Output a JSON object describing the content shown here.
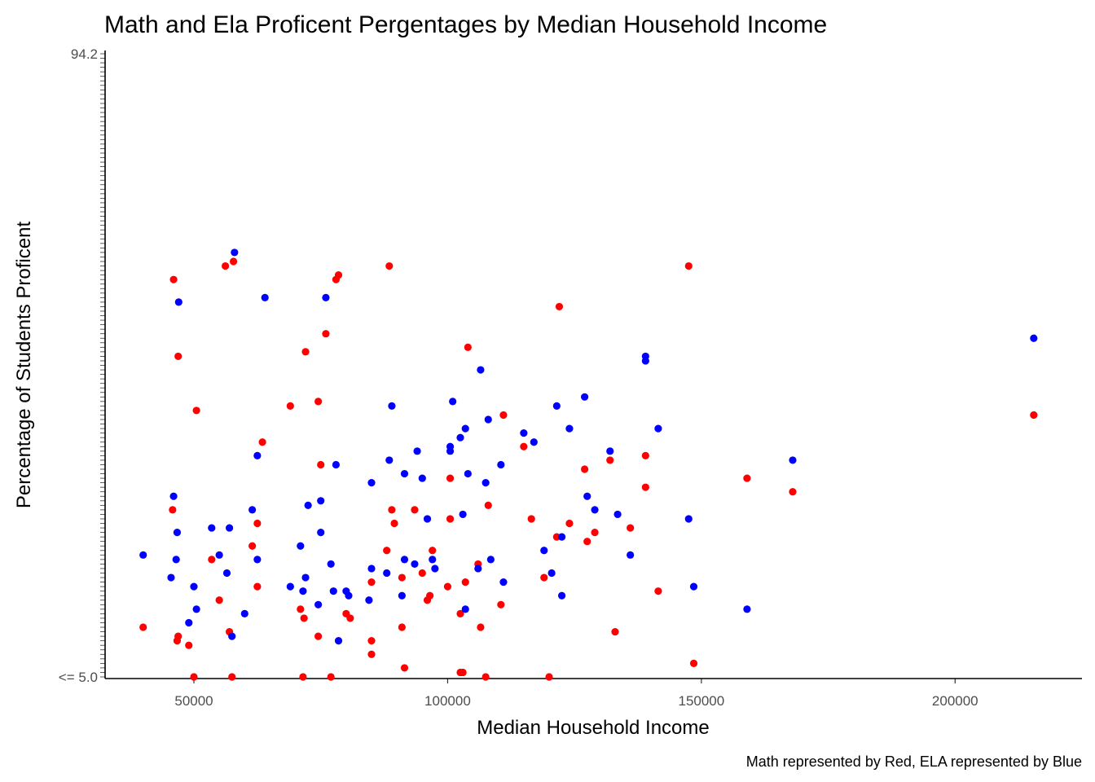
{
  "chart_data": {
    "type": "scatter",
    "title": "Math and Ela Proficent Pergentages by Median Household Income",
    "xlabel": "Median Household Income",
    "ylabel": "Percentage of Students Proficent",
    "caption": "Math represented by Red, ELA represented by Blue",
    "xlim": [
      32500,
      225000
    ],
    "x_ticks": [
      50000,
      100000,
      150000,
      200000
    ],
    "y_axis": {
      "scale": "categorical",
      "first_label": "<= 5.0",
      "last_label": "94.2",
      "levels": 139
    },
    "grid": false,
    "legend": "none",
    "series": [
      {
        "color": "#ff0000",
        "points": [
          {
            "x": 40000,
            "y": 11
          },
          {
            "x": 45800,
            "y": 37
          },
          {
            "x": 46000,
            "y": 88
          },
          {
            "x": 46700,
            "y": 8
          },
          {
            "x": 46900,
            "y": 9
          },
          {
            "x": 46900,
            "y": 71
          },
          {
            "x": 49000,
            "y": 7
          },
          {
            "x": 50000,
            "y": 0
          },
          {
            "x": 50500,
            "y": 59
          },
          {
            "x": 53500,
            "y": 26
          },
          {
            "x": 55000,
            "y": 17
          },
          {
            "x": 56200,
            "y": 91
          },
          {
            "x": 57000,
            "y": 10
          },
          {
            "x": 57500,
            "y": 0
          },
          {
            "x": 57800,
            "y": 92
          },
          {
            "x": 61500,
            "y": 29
          },
          {
            "x": 62500,
            "y": 34
          },
          {
            "x": 62500,
            "y": 20
          },
          {
            "x": 63500,
            "y": 52
          },
          {
            "x": 69000,
            "y": 60
          },
          {
            "x": 71000,
            "y": 15
          },
          {
            "x": 71500,
            "y": 0
          },
          {
            "x": 71700,
            "y": 13
          },
          {
            "x": 72000,
            "y": 72
          },
          {
            "x": 74500,
            "y": 61
          },
          {
            "x": 74500,
            "y": 9
          },
          {
            "x": 75000,
            "y": 47
          },
          {
            "x": 76000,
            "y": 76
          },
          {
            "x": 77000,
            "y": 0
          },
          {
            "x": 78000,
            "y": 88
          },
          {
            "x": 78500,
            "y": 89
          },
          {
            "x": 80000,
            "y": 14
          },
          {
            "x": 80800,
            "y": 13
          },
          {
            "x": 85000,
            "y": 8
          },
          {
            "x": 85000,
            "y": 5
          },
          {
            "x": 85000,
            "y": 21
          },
          {
            "x": 88000,
            "y": 28
          },
          {
            "x": 88500,
            "y": 91
          },
          {
            "x": 89000,
            "y": 37
          },
          {
            "x": 89500,
            "y": 34
          },
          {
            "x": 91000,
            "y": 22
          },
          {
            "x": 91000,
            "y": 11
          },
          {
            "x": 91500,
            "y": 2
          },
          {
            "x": 93500,
            "y": 37
          },
          {
            "x": 95000,
            "y": 23
          },
          {
            "x": 96000,
            "y": 17
          },
          {
            "x": 96500,
            "y": 18
          },
          {
            "x": 97000,
            "y": 28
          },
          {
            "x": 100000,
            "y": 20
          },
          {
            "x": 100500,
            "y": 35
          },
          {
            "x": 100500,
            "y": 44
          },
          {
            "x": 102500,
            "y": 1
          },
          {
            "x": 102500,
            "y": 14
          },
          {
            "x": 103000,
            "y": 1
          },
          {
            "x": 103500,
            "y": 21
          },
          {
            "x": 104000,
            "y": 73
          },
          {
            "x": 106000,
            "y": 25
          },
          {
            "x": 106500,
            "y": 11
          },
          {
            "x": 107500,
            "y": 0
          },
          {
            "x": 108000,
            "y": 38
          },
          {
            "x": 110500,
            "y": 16
          },
          {
            "x": 111000,
            "y": 58
          },
          {
            "x": 115000,
            "y": 51
          },
          {
            "x": 116500,
            "y": 35
          },
          {
            "x": 119000,
            "y": 22
          },
          {
            "x": 120000,
            "y": 0
          },
          {
            "x": 121500,
            "y": 31
          },
          {
            "x": 122000,
            "y": 82
          },
          {
            "x": 124000,
            "y": 34
          },
          {
            "x": 127000,
            "y": 46
          },
          {
            "x": 127500,
            "y": 30
          },
          {
            "x": 129000,
            "y": 32
          },
          {
            "x": 132000,
            "y": 48
          },
          {
            "x": 133000,
            "y": 10
          },
          {
            "x": 136000,
            "y": 33
          },
          {
            "x": 139000,
            "y": 49
          },
          {
            "x": 139000,
            "y": 42
          },
          {
            "x": 141500,
            "y": 19
          },
          {
            "x": 147500,
            "y": 91
          },
          {
            "x": 148500,
            "y": 3
          },
          {
            "x": 159000,
            "y": 44
          },
          {
            "x": 168000,
            "y": 41
          },
          {
            "x": 215500,
            "y": 58
          }
        ]
      },
      {
        "color": "#0000ff",
        "points": [
          {
            "x": 40000,
            "y": 27
          },
          {
            "x": 45500,
            "y": 22
          },
          {
            "x": 46000,
            "y": 40
          },
          {
            "x": 46500,
            "y": 26
          },
          {
            "x": 46700,
            "y": 32
          },
          {
            "x": 47000,
            "y": 83
          },
          {
            "x": 49000,
            "y": 12
          },
          {
            "x": 50000,
            "y": 20
          },
          {
            "x": 50500,
            "y": 15
          },
          {
            "x": 53500,
            "y": 33
          },
          {
            "x": 55000,
            "y": 27
          },
          {
            "x": 56500,
            "y": 23
          },
          {
            "x": 57000,
            "y": 33
          },
          {
            "x": 57500,
            "y": 9
          },
          {
            "x": 58000,
            "y": 94
          },
          {
            "x": 60000,
            "y": 14
          },
          {
            "x": 61500,
            "y": 37
          },
          {
            "x": 62500,
            "y": 26
          },
          {
            "x": 62500,
            "y": 49
          },
          {
            "x": 64000,
            "y": 84
          },
          {
            "x": 69000,
            "y": 20
          },
          {
            "x": 71000,
            "y": 29
          },
          {
            "x": 71500,
            "y": 19
          },
          {
            "x": 72000,
            "y": 22
          },
          {
            "x": 72500,
            "y": 38
          },
          {
            "x": 74500,
            "y": 16
          },
          {
            "x": 75000,
            "y": 39
          },
          {
            "x": 75000,
            "y": 32
          },
          {
            "x": 76000,
            "y": 84
          },
          {
            "x": 77000,
            "y": 25
          },
          {
            "x": 77500,
            "y": 19
          },
          {
            "x": 78000,
            "y": 47
          },
          {
            "x": 78500,
            "y": 8
          },
          {
            "x": 80000,
            "y": 19
          },
          {
            "x": 80500,
            "y": 18
          },
          {
            "x": 84500,
            "y": 17
          },
          {
            "x": 85000,
            "y": 24
          },
          {
            "x": 85000,
            "y": 43
          },
          {
            "x": 88000,
            "y": 23
          },
          {
            "x": 88500,
            "y": 48
          },
          {
            "x": 89000,
            "y": 60
          },
          {
            "x": 91000,
            "y": 18
          },
          {
            "x": 91500,
            "y": 45
          },
          {
            "x": 91500,
            "y": 26
          },
          {
            "x": 93500,
            "y": 25
          },
          {
            "x": 94000,
            "y": 50
          },
          {
            "x": 95000,
            "y": 44
          },
          {
            "x": 96000,
            "y": 35
          },
          {
            "x": 97000,
            "y": 26
          },
          {
            "x": 97500,
            "y": 24
          },
          {
            "x": 100500,
            "y": 50
          },
          {
            "x": 100500,
            "y": 51
          },
          {
            "x": 101000,
            "y": 61
          },
          {
            "x": 102500,
            "y": 53
          },
          {
            "x": 103000,
            "y": 36
          },
          {
            "x": 103500,
            "y": 15
          },
          {
            "x": 103500,
            "y": 55
          },
          {
            "x": 104000,
            "y": 45
          },
          {
            "x": 106000,
            "y": 24
          },
          {
            "x": 106500,
            "y": 68
          },
          {
            "x": 107500,
            "y": 43
          },
          {
            "x": 108000,
            "y": 57
          },
          {
            "x": 108500,
            "y": 26
          },
          {
            "x": 110500,
            "y": 47
          },
          {
            "x": 111000,
            "y": 21
          },
          {
            "x": 115000,
            "y": 54
          },
          {
            "x": 117000,
            "y": 52
          },
          {
            "x": 119000,
            "y": 28
          },
          {
            "x": 120500,
            "y": 23
          },
          {
            "x": 121500,
            "y": 60
          },
          {
            "x": 122500,
            "y": 31
          },
          {
            "x": 122500,
            "y": 18
          },
          {
            "x": 124000,
            "y": 55
          },
          {
            "x": 127000,
            "y": 62
          },
          {
            "x": 127500,
            "y": 40
          },
          {
            "x": 129000,
            "y": 37
          },
          {
            "x": 132000,
            "y": 50
          },
          {
            "x": 133500,
            "y": 36
          },
          {
            "x": 136000,
            "y": 27
          },
          {
            "x": 139000,
            "y": 70
          },
          {
            "x": 139000,
            "y": 71
          },
          {
            "x": 141500,
            "y": 55
          },
          {
            "x": 147500,
            "y": 35
          },
          {
            "x": 148500,
            "y": 20
          },
          {
            "x": 159000,
            "y": 15
          },
          {
            "x": 168000,
            "y": 48
          },
          {
            "x": 215500,
            "y": 75
          }
        ]
      }
    ]
  }
}
